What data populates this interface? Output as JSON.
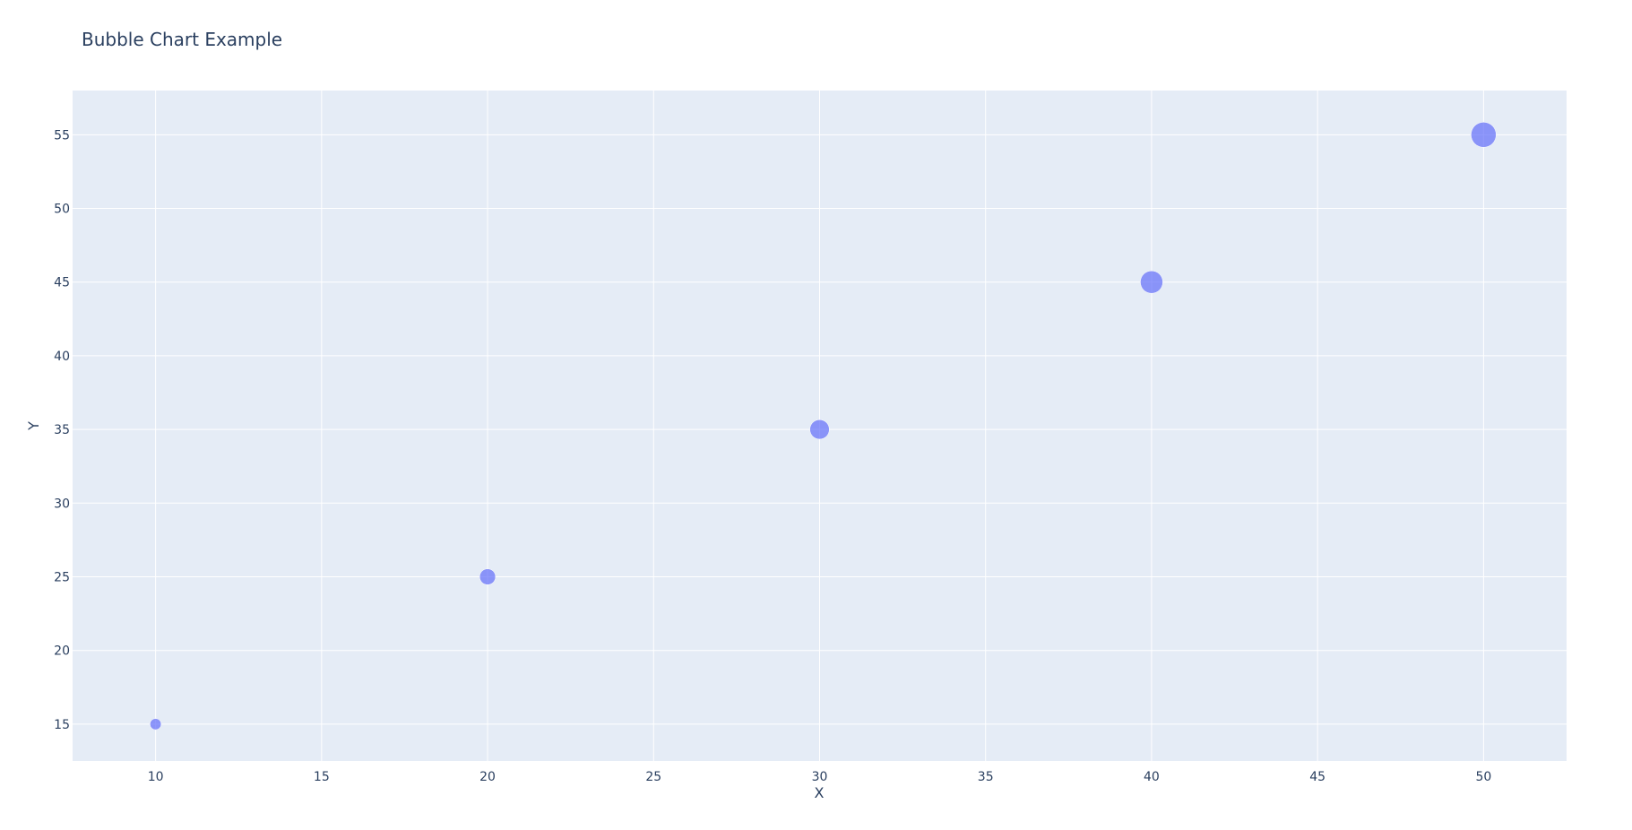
{
  "chart_data": {
    "type": "scatter",
    "title": "Bubble Chart Example",
    "xlabel": "X",
    "ylabel": "Y",
    "xlim": [
      7.5,
      52.5
    ],
    "ylim": [
      12.5,
      58
    ],
    "x_ticks": [
      10,
      15,
      20,
      25,
      30,
      35,
      40,
      45,
      50
    ],
    "y_ticks": [
      15,
      20,
      25,
      30,
      35,
      40,
      45,
      50,
      55
    ],
    "grid": true,
    "series": [
      {
        "x": [
          10,
          20,
          30,
          40,
          50
        ],
        "y": [
          15,
          25,
          35,
          45,
          55
        ],
        "size": [
          10,
          20,
          30,
          40,
          50
        ],
        "color": "#636efa",
        "opacity": 0.7
      }
    ],
    "plot_background": "#e5ecf6",
    "text_color": "#2a3f5f"
  }
}
